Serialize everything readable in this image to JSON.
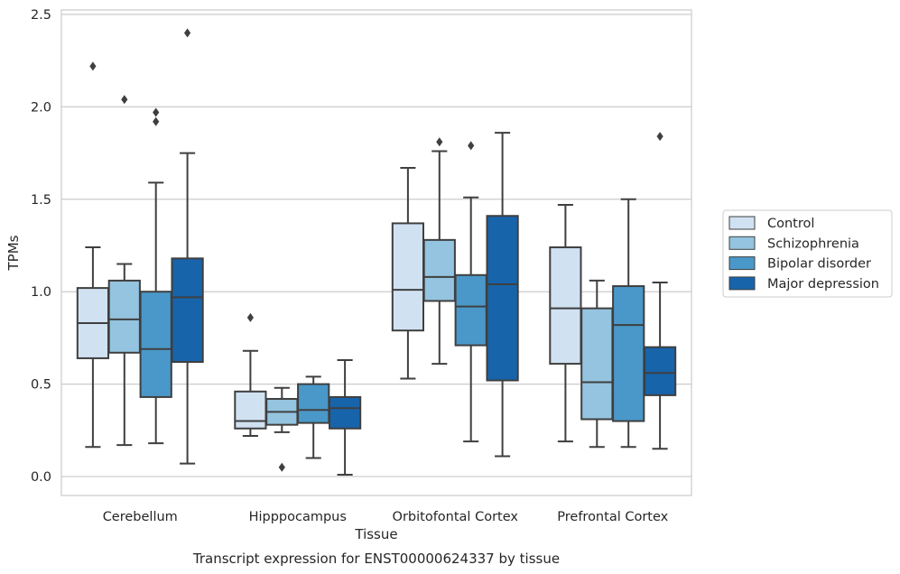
{
  "chart_data": {
    "type": "box",
    "xlabel": "Tissue",
    "ylabel": "TPMs",
    "caption": "Transcript expression for ENST00000624337 by tissue",
    "ylim": [
      -0.1,
      2.52
    ],
    "yticks": [
      0.0,
      0.5,
      1.0,
      1.5,
      2.0,
      2.5
    ],
    "ytick_labels": [
      "0.0",
      "0.5",
      "1.0",
      "1.5",
      "2.0",
      "2.5"
    ],
    "grid": "horizontal",
    "legend_position": "right",
    "categories": [
      "Cerebellum",
      "Hipppocampus",
      "Orbitofontal Cortex",
      "Prefrontal Cortex"
    ],
    "series": [
      {
        "name": "Control",
        "color": "#d0e1f2",
        "boxes": [
          {
            "whisker_low": 0.16,
            "q1": 0.64,
            "median": 0.83,
            "q3": 1.02,
            "whisker_high": 1.24,
            "outliers": [
              2.22
            ]
          },
          {
            "whisker_low": 0.22,
            "q1": 0.26,
            "median": 0.3,
            "q3": 0.46,
            "whisker_high": 0.68,
            "outliers": [
              0.86
            ]
          },
          {
            "whisker_low": 0.53,
            "q1": 0.79,
            "median": 1.01,
            "q3": 1.37,
            "whisker_high": 1.67,
            "outliers": []
          },
          {
            "whisker_low": 0.19,
            "q1": 0.61,
            "median": 0.91,
            "q3": 1.24,
            "whisker_high": 1.47,
            "outliers": []
          }
        ]
      },
      {
        "name": "Schizophrenia",
        "color": "#94c4df",
        "boxes": [
          {
            "whisker_low": 0.17,
            "q1": 0.67,
            "median": 0.85,
            "q3": 1.06,
            "whisker_high": 1.15,
            "outliers": [
              2.04
            ]
          },
          {
            "whisker_low": 0.24,
            "q1": 0.28,
            "median": 0.35,
            "q3": 0.42,
            "whisker_high": 0.48,
            "outliers": [
              0.05
            ]
          },
          {
            "whisker_low": 0.61,
            "q1": 0.95,
            "median": 1.08,
            "q3": 1.28,
            "whisker_high": 1.76,
            "outliers": [
              1.81
            ]
          },
          {
            "whisker_low": 0.16,
            "q1": 0.31,
            "median": 0.51,
            "q3": 0.91,
            "whisker_high": 1.06,
            "outliers": []
          }
        ]
      },
      {
        "name": "Bipolar disorder",
        "color": "#4a98c9",
        "boxes": [
          {
            "whisker_low": 0.18,
            "q1": 0.43,
            "median": 0.69,
            "q3": 1.0,
            "whisker_high": 1.59,
            "outliers": [
              1.92,
              1.97
            ]
          },
          {
            "whisker_low": 0.1,
            "q1": 0.29,
            "median": 0.36,
            "q3": 0.5,
            "whisker_high": 0.54,
            "outliers": []
          },
          {
            "whisker_low": 0.19,
            "q1": 0.71,
            "median": 0.92,
            "q3": 1.09,
            "whisker_high": 1.51,
            "outliers": [
              1.79
            ]
          },
          {
            "whisker_low": 0.16,
            "q1": 0.3,
            "median": 0.82,
            "q3": 1.03,
            "whisker_high": 1.5,
            "outliers": []
          }
        ]
      },
      {
        "name": "Major depression",
        "color": "#1764ab",
        "boxes": [
          {
            "whisker_low": 0.07,
            "q1": 0.62,
            "median": 0.97,
            "q3": 1.18,
            "whisker_high": 1.75,
            "outliers": [
              2.4
            ]
          },
          {
            "whisker_low": 0.01,
            "q1": 0.26,
            "median": 0.37,
            "q3": 0.43,
            "whisker_high": 0.63,
            "outliers": []
          },
          {
            "whisker_low": 0.11,
            "q1": 0.52,
            "median": 1.04,
            "q3": 1.41,
            "whisker_high": 1.86,
            "outliers": []
          },
          {
            "whisker_low": 0.15,
            "q1": 0.44,
            "median": 0.56,
            "q3": 0.7,
            "whisker_high": 1.05,
            "outliers": [
              1.84
            ]
          }
        ]
      }
    ]
  }
}
